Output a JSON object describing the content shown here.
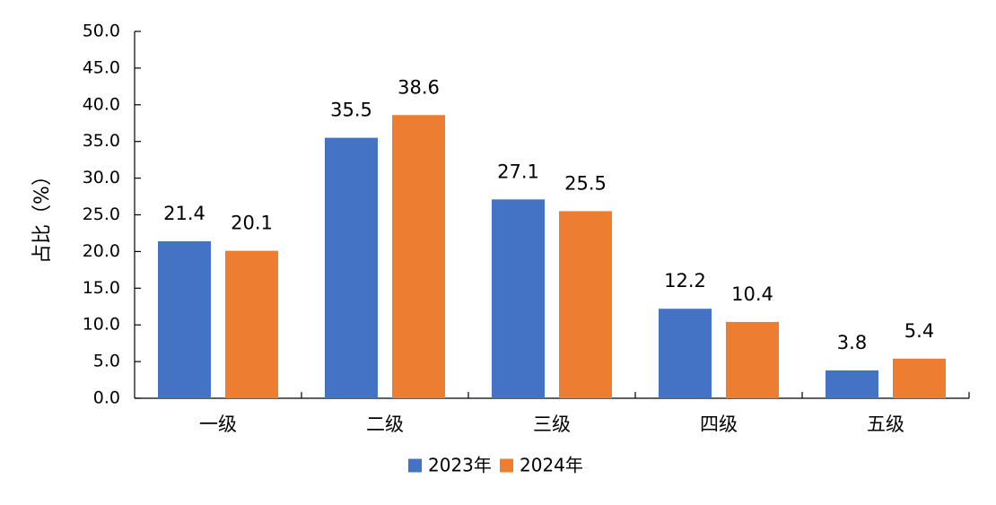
{
  "chart_data": {
    "type": "bar",
    "title": "",
    "xlabel": "",
    "ylabel": "占比（%）",
    "ylim": [
      0,
      50
    ],
    "ytick_step": 5,
    "ytick_decimals": 1,
    "grid": false,
    "legend_position": "bottom",
    "categories": [
      "一级",
      "二级",
      "三级",
      "四级",
      "五级"
    ],
    "series": [
      {
        "name": "2023年",
        "color": "#4472C4",
        "values": [
          21.4,
          35.5,
          27.1,
          12.2,
          3.8
        ]
      },
      {
        "name": "2024年",
        "color": "#ED7D31",
        "values": [
          20.1,
          38.6,
          25.5,
          10.4,
          5.4
        ]
      }
    ]
  }
}
